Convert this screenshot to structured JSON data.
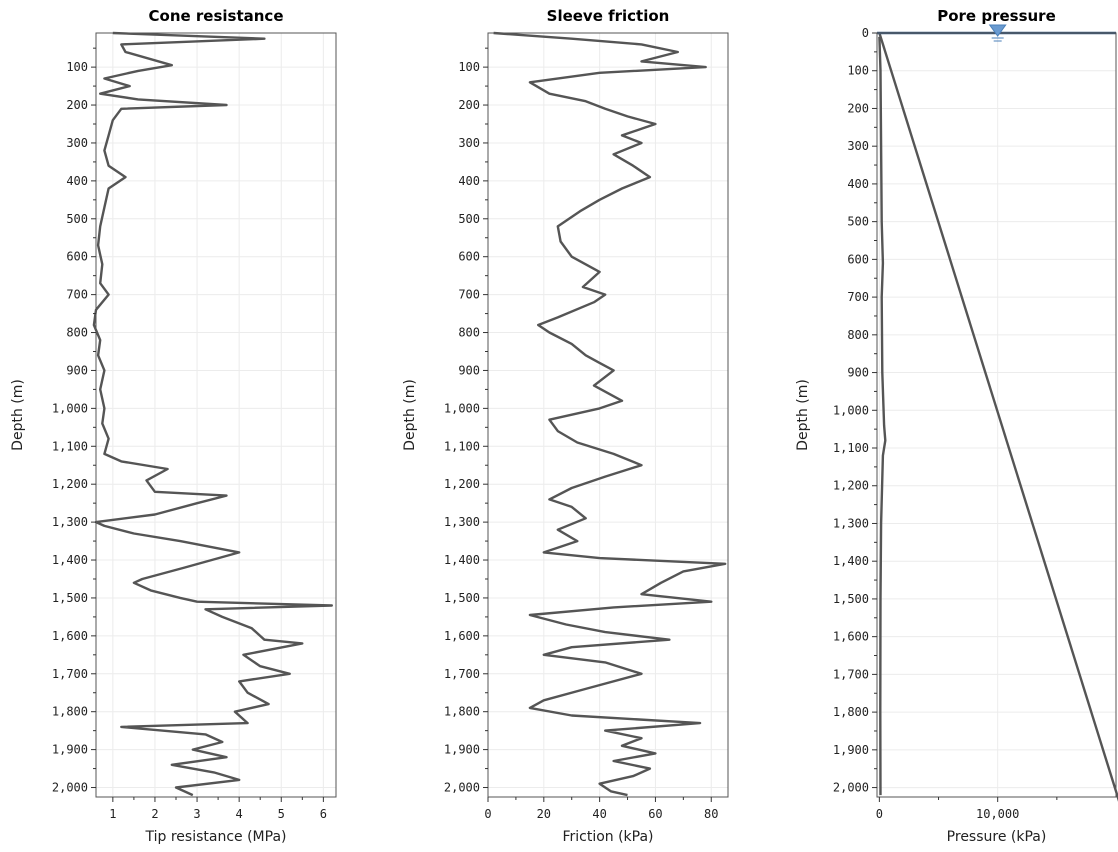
{
  "chart_data": [
    {
      "type": "line",
      "title": "Cone resistance",
      "xlabel": "Tip resistance (MPa)",
      "ylabel": "Depth (m)",
      "xlim": [
        0.6,
        6.3
      ],
      "ylim": [
        10,
        2025
      ],
      "y_inverted": true,
      "x_ticks": [
        1,
        2,
        3,
        4,
        5,
        6
      ],
      "x_tick_labels": [
        "1",
        "2",
        "3",
        "4",
        "5",
        "6"
      ],
      "y_ticks": [
        100,
        200,
        300,
        400,
        500,
        600,
        700,
        800,
        900,
        1000,
        1100,
        1200,
        1300,
        1400,
        1500,
        1600,
        1700,
        1800,
        1900,
        2000
      ],
      "y_tick_labels": [
        "100",
        "200",
        "300",
        "400",
        "500",
        "600",
        "700",
        "800",
        "900",
        "1,000",
        "1,100",
        "1,200",
        "1,300",
        "1,400",
        "1,500",
        "1,600",
        "1,700",
        "1,800",
        "1,900",
        "2,000"
      ],
      "grid": true,
      "series": [
        {
          "color": "#555555",
          "points": [
            [
              1.0,
              10
            ],
            [
              4.6,
              25
            ],
            [
              1.2,
              40
            ],
            [
              1.3,
              60
            ],
            [
              2.4,
              95
            ],
            [
              1.6,
              110
            ],
            [
              0.8,
              130
            ],
            [
              1.4,
              150
            ],
            [
              0.7,
              170
            ],
            [
              1.6,
              185
            ],
            [
              3.7,
              200
            ],
            [
              1.2,
              210
            ],
            [
              1.0,
              240
            ],
            [
              0.9,
              280
            ],
            [
              0.8,
              320
            ],
            [
              0.9,
              360
            ],
            [
              1.3,
              390
            ],
            [
              0.9,
              420
            ],
            [
              0.8,
              470
            ],
            [
              0.7,
              520
            ],
            [
              0.65,
              570
            ],
            [
              0.75,
              620
            ],
            [
              0.7,
              670
            ],
            [
              0.9,
              700
            ],
            [
              0.6,
              740
            ],
            [
              0.55,
              780
            ],
            [
              0.7,
              820
            ],
            [
              0.65,
              860
            ],
            [
              0.8,
              900
            ],
            [
              0.7,
              950
            ],
            [
              0.8,
              1000
            ],
            [
              0.75,
              1040
            ],
            [
              0.9,
              1080
            ],
            [
              0.8,
              1120
            ],
            [
              1.2,
              1140
            ],
            [
              2.3,
              1160
            ],
            [
              1.8,
              1190
            ],
            [
              2.0,
              1220
            ],
            [
              3.7,
              1230
            ],
            [
              3.0,
              1250
            ],
            [
              2.0,
              1280
            ],
            [
              0.6,
              1300
            ],
            [
              0.8,
              1310
            ],
            [
              1.5,
              1330
            ],
            [
              2.6,
              1350
            ],
            [
              4.0,
              1380
            ],
            [
              2.7,
              1420
            ],
            [
              1.7,
              1450
            ],
            [
              1.5,
              1460
            ],
            [
              1.9,
              1480
            ],
            [
              2.6,
              1500
            ],
            [
              3.0,
              1510
            ],
            [
              6.2,
              1520
            ],
            [
              3.2,
              1530
            ],
            [
              3.6,
              1550
            ],
            [
              4.3,
              1580
            ],
            [
              4.6,
              1610
            ],
            [
              5.5,
              1620
            ],
            [
              4.1,
              1650
            ],
            [
              4.5,
              1680
            ],
            [
              5.2,
              1700
            ],
            [
              4.0,
              1720
            ],
            [
              4.2,
              1750
            ],
            [
              4.7,
              1780
            ],
            [
              3.9,
              1800
            ],
            [
              4.2,
              1830
            ],
            [
              1.2,
              1840
            ],
            [
              3.2,
              1860
            ],
            [
              3.6,
              1880
            ],
            [
              2.9,
              1900
            ],
            [
              3.7,
              1920
            ],
            [
              2.4,
              1940
            ],
            [
              3.4,
              1960
            ],
            [
              4.0,
              1980
            ],
            [
              2.5,
              2000
            ],
            [
              2.9,
              2020
            ]
          ]
        }
      ]
    },
    {
      "type": "line",
      "title": "Sleeve friction",
      "xlabel": "Friction (kPa)",
      "ylabel": "Depth (m)",
      "xlim": [
        0,
        86
      ],
      "ylim": [
        10,
        2025
      ],
      "y_inverted": true,
      "x_ticks": [
        0,
        20,
        40,
        60,
        80
      ],
      "x_tick_labels": [
        "0",
        "20",
        "40",
        "60",
        "80"
      ],
      "y_ticks": [
        100,
        200,
        300,
        400,
        500,
        600,
        700,
        800,
        900,
        1000,
        1100,
        1200,
        1300,
        1400,
        1500,
        1600,
        1700,
        1800,
        1900,
        2000
      ],
      "y_tick_labels": [
        "100",
        "200",
        "300",
        "400",
        "500",
        "600",
        "700",
        "800",
        "900",
        "1,000",
        "1,100",
        "1,200",
        "1,300",
        "1,400",
        "1,500",
        "1,600",
        "1,700",
        "1,800",
        "1,900",
        "2,000"
      ],
      "grid": true,
      "series": [
        {
          "color": "#555555",
          "points": [
            [
              2,
              10
            ],
            [
              30,
              25
            ],
            [
              55,
              40
            ],
            [
              68,
              60
            ],
            [
              55,
              85
            ],
            [
              78,
              100
            ],
            [
              40,
              115
            ],
            [
              15,
              140
            ],
            [
              22,
              170
            ],
            [
              35,
              190
            ],
            [
              42,
              210
            ],
            [
              50,
              230
            ],
            [
              60,
              250
            ],
            [
              48,
              280
            ],
            [
              55,
              300
            ],
            [
              45,
              330
            ],
            [
              52,
              360
            ],
            [
              58,
              390
            ],
            [
              48,
              420
            ],
            [
              40,
              450
            ],
            [
              33,
              480
            ],
            [
              25,
              520
            ],
            [
              26,
              560
            ],
            [
              30,
              600
            ],
            [
              40,
              640
            ],
            [
              34,
              680
            ],
            [
              42,
              700
            ],
            [
              38,
              720
            ],
            [
              25,
              760
            ],
            [
              18,
              780
            ],
            [
              22,
              800
            ],
            [
              30,
              830
            ],
            [
              35,
              860
            ],
            [
              40,
              880
            ],
            [
              45,
              900
            ],
            [
              38,
              940
            ],
            [
              48,
              980
            ],
            [
              40,
              1000
            ],
            [
              22,
              1030
            ],
            [
              25,
              1060
            ],
            [
              32,
              1090
            ],
            [
              45,
              1120
            ],
            [
              55,
              1150
            ],
            [
              42,
              1180
            ],
            [
              30,
              1210
            ],
            [
              22,
              1240
            ],
            [
              30,
              1260
            ],
            [
              35,
              1290
            ],
            [
              25,
              1320
            ],
            [
              32,
              1350
            ],
            [
              20,
              1380
            ],
            [
              40,
              1395
            ],
            [
              85,
              1410
            ],
            [
              70,
              1430
            ],
            [
              62,
              1460
            ],
            [
              55,
              1490
            ],
            [
              80,
              1510
            ],
            [
              45,
              1525
            ],
            [
              15,
              1545
            ],
            [
              28,
              1570
            ],
            [
              42,
              1590
            ],
            [
              65,
              1610
            ],
            [
              30,
              1630
            ],
            [
              20,
              1650
            ],
            [
              42,
              1670
            ],
            [
              55,
              1700
            ],
            [
              35,
              1740
            ],
            [
              20,
              1770
            ],
            [
              15,
              1790
            ],
            [
              30,
              1810
            ],
            [
              76,
              1830
            ],
            [
              42,
              1850
            ],
            [
              55,
              1870
            ],
            [
              48,
              1890
            ],
            [
              60,
              1910
            ],
            [
              45,
              1930
            ],
            [
              58,
              1950
            ],
            [
              52,
              1970
            ],
            [
              40,
              1990
            ],
            [
              44,
              2010
            ],
            [
              50,
              2020
            ]
          ]
        }
      ]
    },
    {
      "type": "line",
      "title": "Pore pressure",
      "xlabel": "Pressure (kPa)",
      "ylabel": "Depth (m)",
      "xlim": [
        -200,
        20000
      ],
      "ylim": [
        0,
        2025
      ],
      "y_inverted": true,
      "x_ticks": [
        0,
        10000
      ],
      "x_tick_labels": [
        "0",
        "10,000"
      ],
      "y_ticks": [
        0,
        100,
        200,
        300,
        400,
        500,
        600,
        700,
        800,
        900,
        1000,
        1100,
        1200,
        1300,
        1400,
        1500,
        1600,
        1700,
        1800,
        1900,
        2000
      ],
      "y_tick_labels": [
        "0",
        "100",
        "200",
        "300",
        "400",
        "500",
        "600",
        "700",
        "800",
        "900",
        "1,000",
        "1,100",
        "1,200",
        "1,300",
        "1,400",
        "1,500",
        "1,600",
        "1,700",
        "1,800",
        "1,900",
        "2,000"
      ],
      "grid": true,
      "water_table_depth": 0,
      "water_table_x": 10000,
      "series": [
        {
          "color": "#555555",
          "points": [
            [
              0,
              10
            ],
            [
              100,
              100
            ],
            [
              150,
              300
            ],
            [
              200,
              500
            ],
            [
              300,
              610
            ],
            [
              200,
              700
            ],
            [
              250,
              900
            ],
            [
              400,
              1040
            ],
            [
              500,
              1080
            ],
            [
              300,
              1120
            ],
            [
              150,
              1300
            ],
            [
              100,
              1500
            ],
            [
              80,
              1800
            ],
            [
              100,
              2020
            ]
          ]
        },
        {
          "color": "#5a8fc0",
          "points": [
            [
              0,
              0
            ],
            [
              20500,
              2060
            ]
          ]
        }
      ]
    }
  ]
}
